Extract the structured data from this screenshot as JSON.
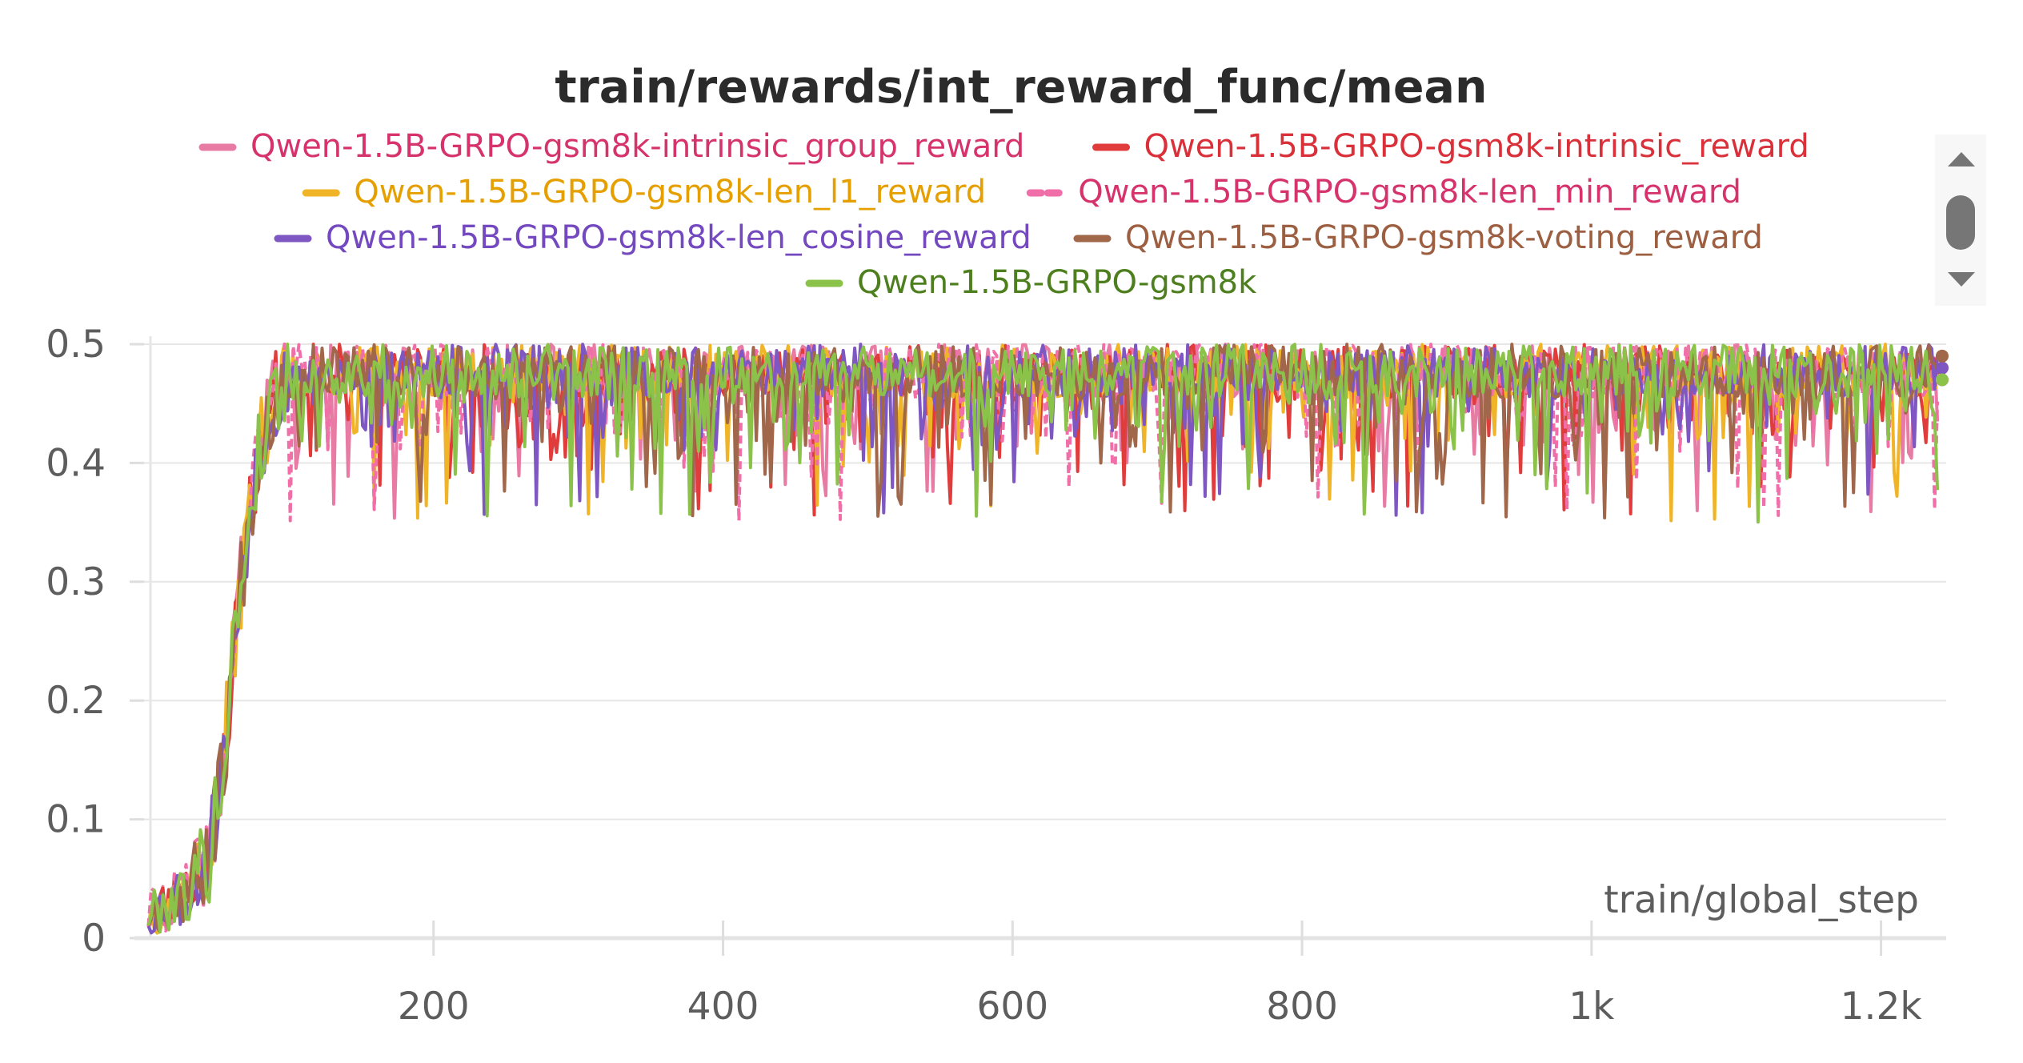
{
  "chart_data": {
    "type": "line",
    "title": "train/rewards/int_reward_func/mean",
    "xlabel": "train/global_step",
    "ylabel": "",
    "xlim": [
      0,
      1245
    ],
    "ylim": [
      0,
      0.5
    ],
    "x_ticks": [
      200,
      400,
      600,
      800,
      1000,
      1200
    ],
    "x_tick_labels": [
      "200",
      "400",
      "600",
      "800",
      "1k",
      "1.2k"
    ],
    "y_ticks": [
      0,
      0.1,
      0.2,
      0.3,
      0.4,
      0.5
    ],
    "y_tick_labels": [
      "0",
      "0.1",
      "0.2",
      "0.3",
      "0.4",
      "0.5"
    ],
    "grid": true,
    "legend_position": "top",
    "curve_profile": {
      "x_start": 3,
      "x_end": 1240,
      "ramp": [
        {
          "x": 3,
          "y": 0.02
        },
        {
          "x": 30,
          "y": 0.04
        },
        {
          "x": 45,
          "y": 0.07
        },
        {
          "x": 55,
          "y": 0.15
        },
        {
          "x": 65,
          "y": 0.28
        },
        {
          "x": 75,
          "y": 0.38
        },
        {
          "x": 85,
          "y": 0.44
        },
        {
          "x": 100,
          "y": 0.48
        },
        {
          "x": 1240,
          "y": 0.48
        }
      ],
      "plateau_range": [
        0.35,
        0.5
      ]
    },
    "series": [
      {
        "name": "Qwen-1.5B-GRPO-gsm8k-intrinsic_group_reward",
        "color": "#e87ba4",
        "label_color": "#d6336c",
        "dashed": false,
        "seed": 11
      },
      {
        "name": "Qwen-1.5B-GRPO-gsm8k-intrinsic_reward",
        "color": "#e03c3c",
        "label_color": "#d9303a",
        "dashed": false,
        "seed": 23
      },
      {
        "name": "Qwen-1.5B-GRPO-gsm8k-len_l1_reward",
        "color": "#f0b429",
        "label_color": "#e5a000",
        "dashed": false,
        "seed": 37
      },
      {
        "name": "Qwen-1.5B-GRPO-gsm8k-len_min_reward",
        "color": "#f06fa8",
        "label_color": "#d6336c",
        "dashed": true,
        "seed": 41
      },
      {
        "name": "Qwen-1.5B-GRPO-gsm8k-len_cosine_reward",
        "color": "#7e57c2",
        "label_color": "#7449c0",
        "dashed": false,
        "seed": 53
      },
      {
        "name": "Qwen-1.5B-GRPO-gsm8k-voting_reward",
        "color": "#a0674b",
        "label_color": "#9c5f42",
        "dashed": false,
        "seed": 67
      },
      {
        "name": "Qwen-1.5B-GRPO-gsm8k",
        "color": "#8bc34a",
        "label_color": "#4e7f1e",
        "dashed": false,
        "seed": 79
      }
    ]
  },
  "ui": {
    "legend_scroll": {
      "up_icon": "caret-up-icon",
      "down_icon": "caret-down-icon"
    }
  }
}
